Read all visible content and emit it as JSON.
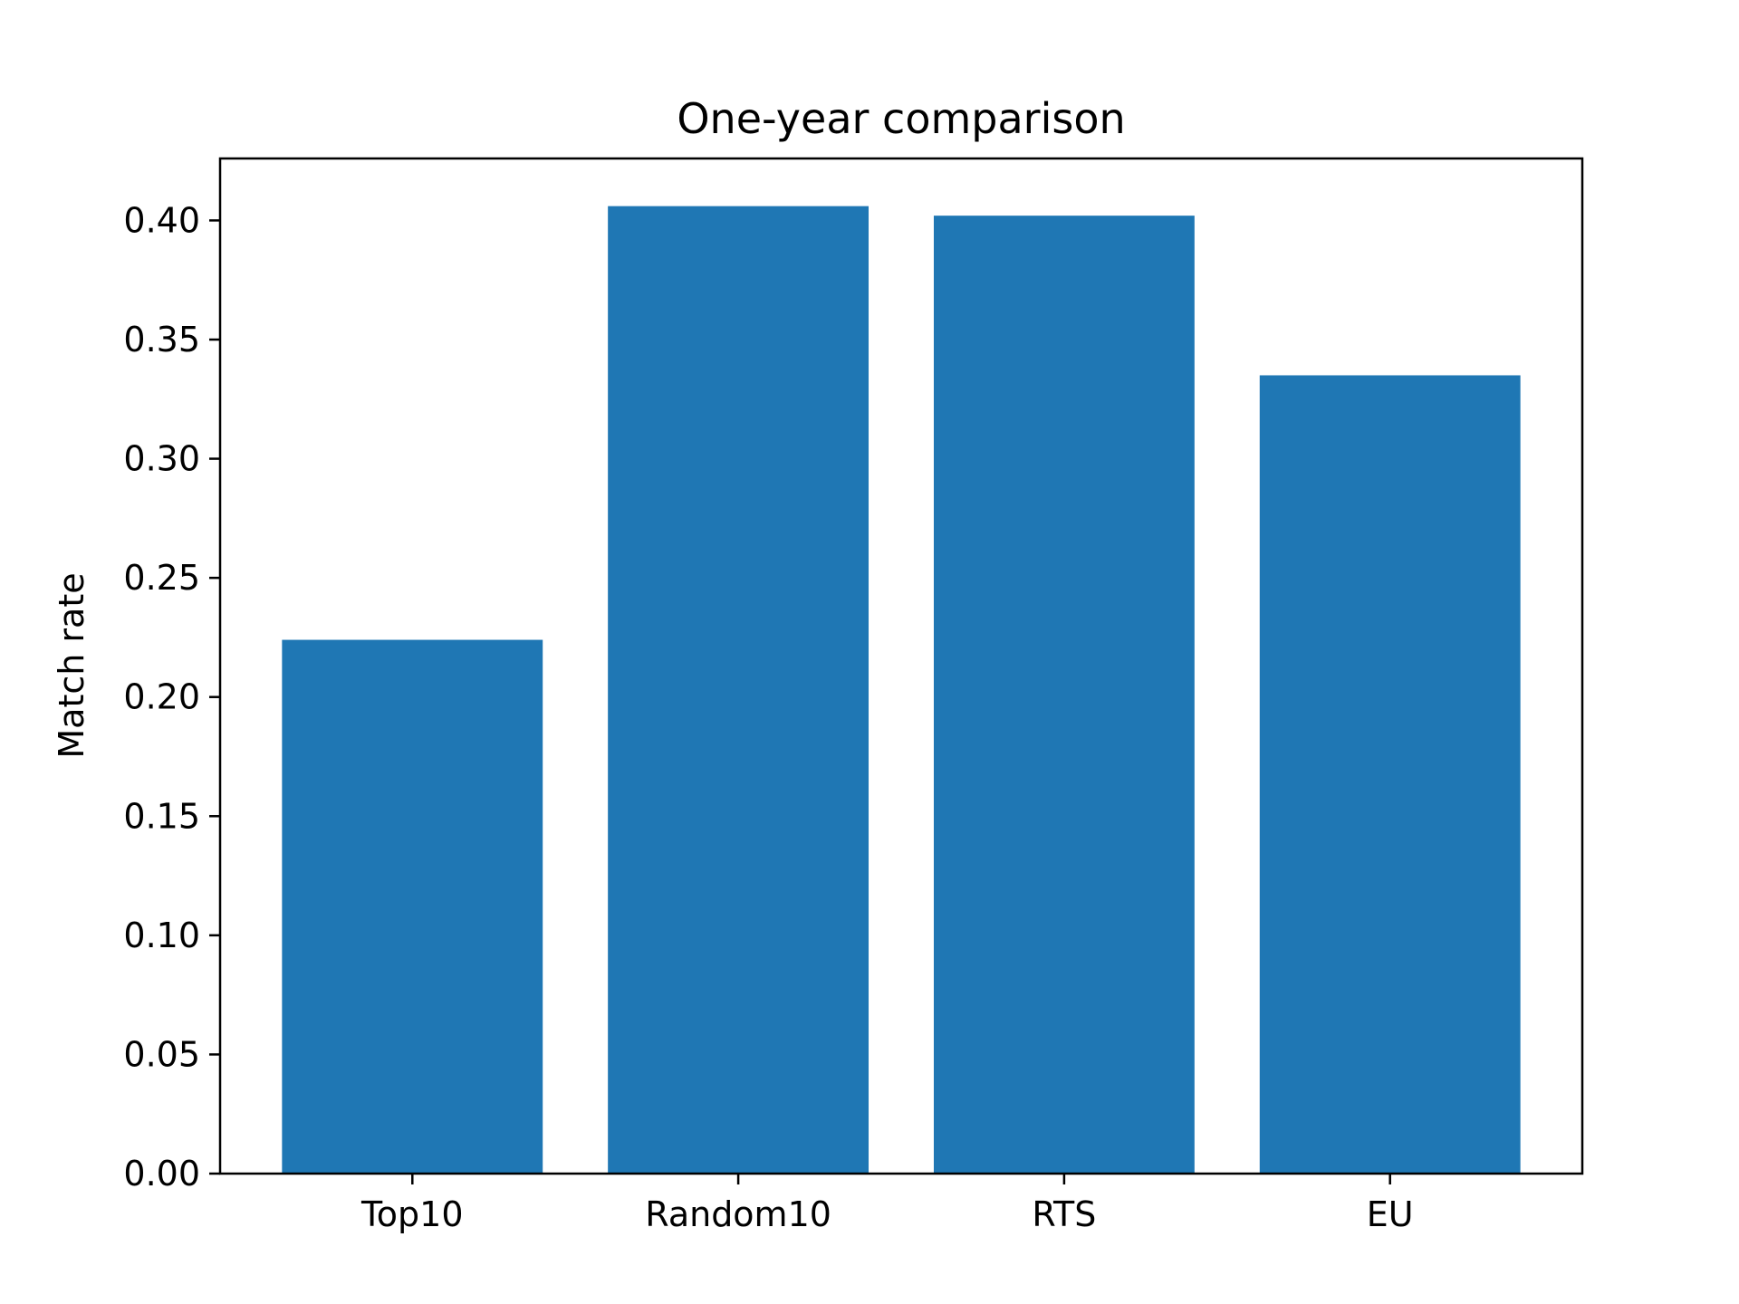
{
  "chart_data": {
    "type": "bar",
    "title": "One-year comparison",
    "xlabel": "",
    "ylabel": "Match rate",
    "categories": [
      "Top10",
      "Random10",
      "RTS",
      "EU"
    ],
    "values": [
      0.224,
      0.406,
      0.402,
      0.335
    ],
    "ylim": [
      0,
      0.426
    ],
    "yticks": [
      0.0,
      0.05,
      0.1,
      0.15,
      0.2,
      0.25,
      0.3,
      0.35,
      0.4
    ],
    "ytick_labels": [
      "0.00",
      "0.05",
      "0.10",
      "0.15",
      "0.20",
      "0.25",
      "0.30",
      "0.35",
      "0.40"
    ],
    "bar_color": "#1f77b4",
    "grid": false,
    "legend": "none"
  }
}
